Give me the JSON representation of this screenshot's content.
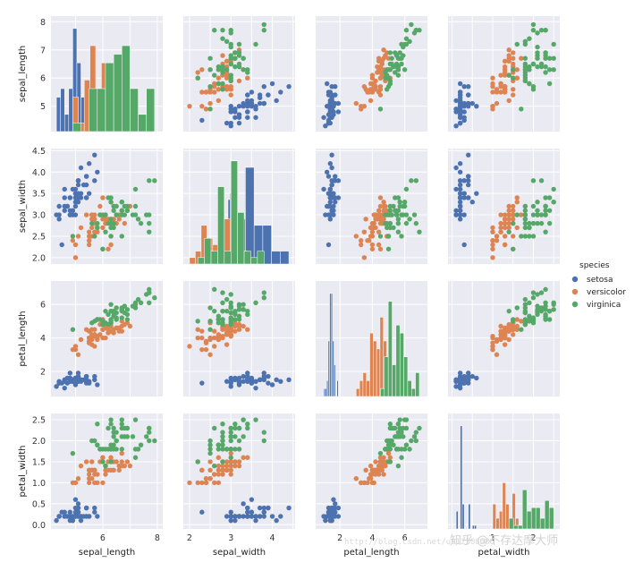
{
  "chart_data": {
    "type": "scatter",
    "subtype": "pairplot",
    "variables": [
      "sepal_length",
      "sepal_width",
      "petal_length",
      "petal_width"
    ],
    "diagonal_kind": "histogram",
    "hue": "species",
    "legend": {
      "title": "species",
      "placement": "right",
      "entries": [
        {
          "name": "setosa",
          "color": "#4c72b0"
        },
        {
          "name": "versicolor",
          "color": "#dd8452"
        },
        {
          "name": "virginica",
          "color": "#55a868"
        }
      ]
    },
    "axes": {
      "sepal_length": {
        "label": "sepal_length",
        "lim": [
          4.1,
          8.2
        ],
        "ticks": [
          5,
          6,
          7,
          8
        ],
        "xticks": [
          6,
          8
        ]
      },
      "sepal_width": {
        "label": "sepal_width",
        "lim": [
          1.85,
          4.55
        ],
        "ticks": [
          2.0,
          2.5,
          3.0,
          3.5,
          4.0,
          4.5
        ],
        "xticks": [
          2,
          3,
          4
        ]
      },
      "petal_length": {
        "label": "petal_length",
        "lim": [
          0.5,
          7.4
        ],
        "ticks": [
          2,
          4,
          6
        ],
        "xticks": [
          2,
          4,
          6
        ]
      },
      "petal_width": {
        "label": "petal_width",
        "lim": [
          -0.1,
          2.65
        ],
        "ticks": [
          0.0,
          0.5,
          1.0,
          1.5,
          2.0,
          2.5
        ],
        "xticks": [
          1,
          2
        ]
      }
    },
    "grid": true,
    "background": "#eaeaf2",
    "series": [
      {
        "name": "setosa",
        "color": "#4c72b0",
        "points": [
          [
            5.1,
            3.5,
            1.4,
            0.2
          ],
          [
            4.9,
            3.0,
            1.4,
            0.2
          ],
          [
            4.7,
            3.2,
            1.3,
            0.2
          ],
          [
            4.6,
            3.1,
            1.5,
            0.2
          ],
          [
            5.0,
            3.6,
            1.4,
            0.2
          ],
          [
            5.4,
            3.9,
            1.7,
            0.4
          ],
          [
            4.6,
            3.4,
            1.4,
            0.3
          ],
          [
            5.0,
            3.4,
            1.5,
            0.2
          ],
          [
            4.4,
            2.9,
            1.4,
            0.2
          ],
          [
            4.9,
            3.1,
            1.5,
            0.1
          ],
          [
            5.4,
            3.7,
            1.5,
            0.2
          ],
          [
            4.8,
            3.4,
            1.6,
            0.2
          ],
          [
            4.8,
            3.0,
            1.4,
            0.1
          ],
          [
            4.3,
            3.0,
            1.1,
            0.1
          ],
          [
            5.8,
            4.0,
            1.2,
            0.2
          ],
          [
            5.7,
            4.4,
            1.5,
            0.4
          ],
          [
            5.4,
            3.9,
            1.3,
            0.4
          ],
          [
            5.1,
            3.5,
            1.4,
            0.3
          ],
          [
            5.7,
            3.8,
            1.7,
            0.3
          ],
          [
            5.1,
            3.8,
            1.5,
            0.3
          ],
          [
            5.4,
            3.4,
            1.7,
            0.2
          ],
          [
            5.1,
            3.7,
            1.5,
            0.4
          ],
          [
            4.6,
            3.6,
            1.0,
            0.2
          ],
          [
            5.1,
            3.3,
            1.7,
            0.5
          ],
          [
            4.8,
            3.4,
            1.9,
            0.2
          ],
          [
            5.0,
            3.0,
            1.6,
            0.2
          ],
          [
            5.0,
            3.4,
            1.6,
            0.4
          ],
          [
            5.2,
            3.5,
            1.5,
            0.2
          ],
          [
            5.2,
            3.4,
            1.4,
            0.2
          ],
          [
            4.7,
            3.2,
            1.6,
            0.2
          ],
          [
            4.8,
            3.1,
            1.6,
            0.2
          ],
          [
            5.4,
            3.4,
            1.5,
            0.4
          ],
          [
            5.2,
            4.1,
            1.5,
            0.1
          ],
          [
            5.5,
            4.2,
            1.4,
            0.2
          ],
          [
            4.9,
            3.1,
            1.5,
            0.2
          ],
          [
            5.0,
            3.2,
            1.2,
            0.2
          ],
          [
            5.5,
            3.5,
            1.3,
            0.2
          ],
          [
            4.9,
            3.6,
            1.4,
            0.1
          ],
          [
            4.4,
            3.0,
            1.3,
            0.2
          ],
          [
            5.1,
            3.4,
            1.5,
            0.2
          ],
          [
            5.0,
            3.5,
            1.3,
            0.3
          ],
          [
            4.5,
            2.3,
            1.3,
            0.3
          ],
          [
            4.4,
            3.2,
            1.3,
            0.2
          ],
          [
            5.0,
            3.5,
            1.6,
            0.6
          ],
          [
            5.1,
            3.8,
            1.9,
            0.4
          ],
          [
            4.8,
            3.0,
            1.4,
            0.3
          ],
          [
            5.1,
            3.8,
            1.6,
            0.2
          ],
          [
            4.6,
            3.2,
            1.4,
            0.2
          ],
          [
            5.3,
            3.7,
            1.5,
            0.2
          ],
          [
            5.0,
            3.3,
            1.4,
            0.2
          ]
        ]
      },
      {
        "name": "versicolor",
        "color": "#dd8452",
        "points": [
          [
            7.0,
            3.2,
            4.7,
            1.4
          ],
          [
            6.4,
            3.2,
            4.5,
            1.5
          ],
          [
            6.9,
            3.1,
            4.9,
            1.5
          ],
          [
            5.5,
            2.3,
            4.0,
            1.3
          ],
          [
            6.5,
            2.8,
            4.6,
            1.5
          ],
          [
            5.7,
            2.8,
            4.5,
            1.3
          ],
          [
            6.3,
            3.3,
            4.7,
            1.6
          ],
          [
            4.9,
            2.4,
            3.3,
            1.0
          ],
          [
            6.6,
            2.9,
            4.6,
            1.3
          ],
          [
            5.2,
            2.7,
            3.9,
            1.4
          ],
          [
            5.0,
            2.0,
            3.5,
            1.0
          ],
          [
            5.9,
            3.0,
            4.2,
            1.5
          ],
          [
            6.0,
            2.2,
            4.0,
            1.0
          ],
          [
            6.1,
            2.9,
            4.7,
            1.4
          ],
          [
            5.6,
            2.9,
            3.6,
            1.3
          ],
          [
            6.7,
            3.1,
            4.4,
            1.4
          ],
          [
            5.6,
            3.0,
            4.5,
            1.5
          ],
          [
            5.8,
            2.7,
            4.1,
            1.0
          ],
          [
            6.2,
            2.2,
            4.5,
            1.5
          ],
          [
            5.6,
            2.5,
            3.9,
            1.1
          ],
          [
            5.9,
            3.2,
            4.8,
            1.8
          ],
          [
            6.1,
            2.8,
            4.0,
            1.3
          ],
          [
            6.3,
            2.5,
            4.9,
            1.5
          ],
          [
            6.1,
            2.8,
            4.7,
            1.2
          ],
          [
            6.4,
            2.9,
            4.3,
            1.3
          ],
          [
            6.6,
            3.0,
            4.4,
            1.4
          ],
          [
            6.8,
            2.8,
            4.8,
            1.4
          ],
          [
            6.7,
            3.0,
            5.0,
            1.7
          ],
          [
            6.0,
            2.9,
            4.5,
            1.5
          ],
          [
            5.7,
            2.6,
            3.5,
            1.0
          ],
          [
            5.5,
            2.4,
            3.8,
            1.1
          ],
          [
            5.5,
            2.4,
            3.7,
            1.0
          ],
          [
            5.8,
            2.7,
            3.9,
            1.2
          ],
          [
            6.0,
            2.7,
            5.1,
            1.6
          ],
          [
            5.4,
            3.0,
            4.5,
            1.5
          ],
          [
            6.0,
            3.4,
            4.5,
            1.6
          ],
          [
            6.7,
            3.1,
            4.7,
            1.5
          ],
          [
            6.3,
            2.3,
            4.4,
            1.3
          ],
          [
            5.6,
            3.0,
            4.1,
            1.3
          ],
          [
            5.5,
            2.5,
            4.0,
            1.3
          ],
          [
            5.5,
            2.6,
            4.4,
            1.2
          ],
          [
            6.1,
            3.0,
            4.6,
            1.4
          ],
          [
            5.8,
            2.6,
            4.0,
            1.2
          ],
          [
            5.0,
            2.3,
            3.3,
            1.0
          ],
          [
            5.6,
            2.7,
            4.2,
            1.3
          ],
          [
            5.7,
            3.0,
            4.2,
            1.2
          ],
          [
            5.7,
            2.9,
            4.2,
            1.3
          ],
          [
            6.2,
            2.9,
            4.3,
            1.3
          ],
          [
            5.1,
            2.5,
            3.0,
            1.1
          ],
          [
            5.7,
            2.8,
            4.1,
            1.3
          ]
        ]
      },
      {
        "name": "virginica",
        "color": "#55a868",
        "points": [
          [
            6.3,
            3.3,
            6.0,
            2.5
          ],
          [
            5.8,
            2.7,
            5.1,
            1.9
          ],
          [
            7.1,
            3.0,
            5.9,
            2.1
          ],
          [
            6.3,
            2.9,
            5.6,
            1.8
          ],
          [
            6.5,
            3.0,
            5.8,
            2.2
          ],
          [
            7.6,
            3.0,
            6.6,
            2.1
          ],
          [
            4.9,
            2.5,
            4.5,
            1.7
          ],
          [
            7.3,
            2.9,
            6.3,
            1.8
          ],
          [
            6.7,
            2.5,
            5.8,
            1.8
          ],
          [
            7.2,
            3.6,
            6.1,
            2.5
          ],
          [
            6.5,
            3.2,
            5.1,
            2.0
          ],
          [
            6.4,
            2.7,
            5.3,
            1.9
          ],
          [
            6.8,
            3.0,
            5.5,
            2.1
          ],
          [
            5.7,
            2.5,
            5.0,
            2.0
          ],
          [
            5.8,
            2.8,
            5.1,
            2.4
          ],
          [
            6.4,
            3.2,
            5.3,
            2.3
          ],
          [
            6.5,
            3.0,
            5.5,
            1.8
          ],
          [
            7.7,
            3.8,
            6.7,
            2.2
          ],
          [
            7.7,
            2.6,
            6.9,
            2.3
          ],
          [
            6.0,
            2.2,
            5.0,
            1.5
          ],
          [
            6.9,
            3.2,
            5.7,
            2.3
          ],
          [
            5.6,
            2.8,
            4.9,
            2.0
          ],
          [
            7.7,
            2.8,
            6.7,
            2.0
          ],
          [
            6.3,
            2.7,
            4.9,
            1.8
          ],
          [
            6.7,
            3.3,
            5.7,
            2.1
          ],
          [
            7.2,
            3.2,
            6.0,
            1.8
          ],
          [
            6.2,
            2.8,
            4.8,
            1.8
          ],
          [
            6.1,
            3.0,
            4.9,
            1.8
          ],
          [
            6.4,
            2.8,
            5.6,
            2.1
          ],
          [
            7.2,
            3.0,
            5.8,
            1.6
          ],
          [
            7.4,
            2.8,
            6.1,
            1.9
          ],
          [
            7.9,
            3.8,
            6.4,
            2.0
          ],
          [
            6.4,
            2.8,
            5.6,
            2.2
          ],
          [
            6.3,
            2.8,
            5.1,
            1.5
          ],
          [
            6.1,
            2.6,
            5.6,
            1.4
          ],
          [
            7.7,
            3.0,
            6.1,
            2.3
          ],
          [
            6.3,
            3.4,
            5.6,
            2.4
          ],
          [
            6.4,
            3.1,
            5.5,
            1.8
          ],
          [
            6.0,
            3.0,
            4.8,
            1.8
          ],
          [
            6.9,
            3.1,
            5.4,
            2.1
          ],
          [
            6.7,
            3.1,
            5.6,
            2.4
          ],
          [
            6.9,
            3.1,
            5.1,
            2.3
          ],
          [
            5.8,
            2.7,
            5.1,
            1.9
          ],
          [
            6.8,
            3.2,
            5.9,
            2.3
          ],
          [
            6.7,
            3.3,
            5.7,
            2.5
          ],
          [
            6.7,
            3.0,
            5.2,
            2.3
          ],
          [
            6.3,
            2.5,
            5.0,
            1.9
          ],
          [
            6.5,
            3.0,
            5.2,
            2.0
          ],
          [
            6.2,
            3.4,
            5.4,
            2.3
          ],
          [
            5.9,
            3.0,
            5.1,
            1.8
          ]
        ]
      }
    ]
  },
  "watermark": {
    "main": "知乎 @不存达摩大师",
    "url": "http://blog.csdn.net/u012308586"
  }
}
